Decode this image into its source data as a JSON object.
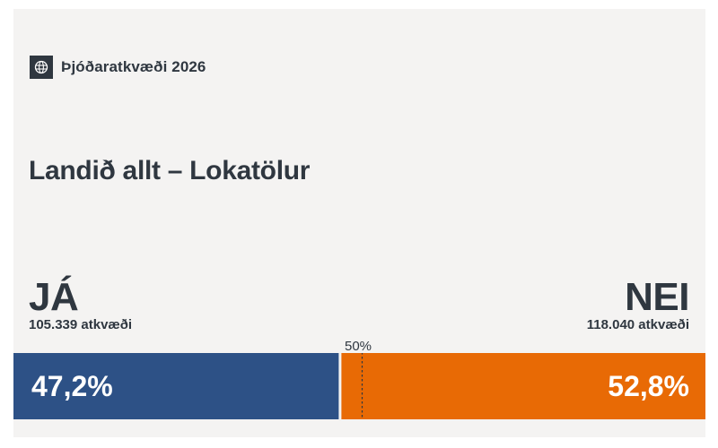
{
  "header": {
    "brand_name": "Þjóðaratkvæði 2026",
    "brand_icon": "emblem-icon"
  },
  "title": "Landið allt – Lokatölur",
  "yes": {
    "label": "JÁ",
    "votes_text": "105.339 atkvæði",
    "percent_text": "47,2%"
  },
  "no": {
    "label": "NEI",
    "votes_text": "118.040 atkvæði",
    "percent_text": "52,8%"
  },
  "midpoint_label": "50%",
  "colors": {
    "yes": "#2d5186",
    "no": "#e86a05",
    "text": "#2f3740",
    "background": "#f4f3f2"
  },
  "chart_data": {
    "type": "bar",
    "orientation": "horizontal-stacked",
    "categories": [
      "JÁ",
      "NEI"
    ],
    "values": [
      47.2,
      52.8
    ],
    "votes": [
      105339,
      118040
    ],
    "reference_line": 50,
    "xlim": [
      0,
      100
    ]
  }
}
